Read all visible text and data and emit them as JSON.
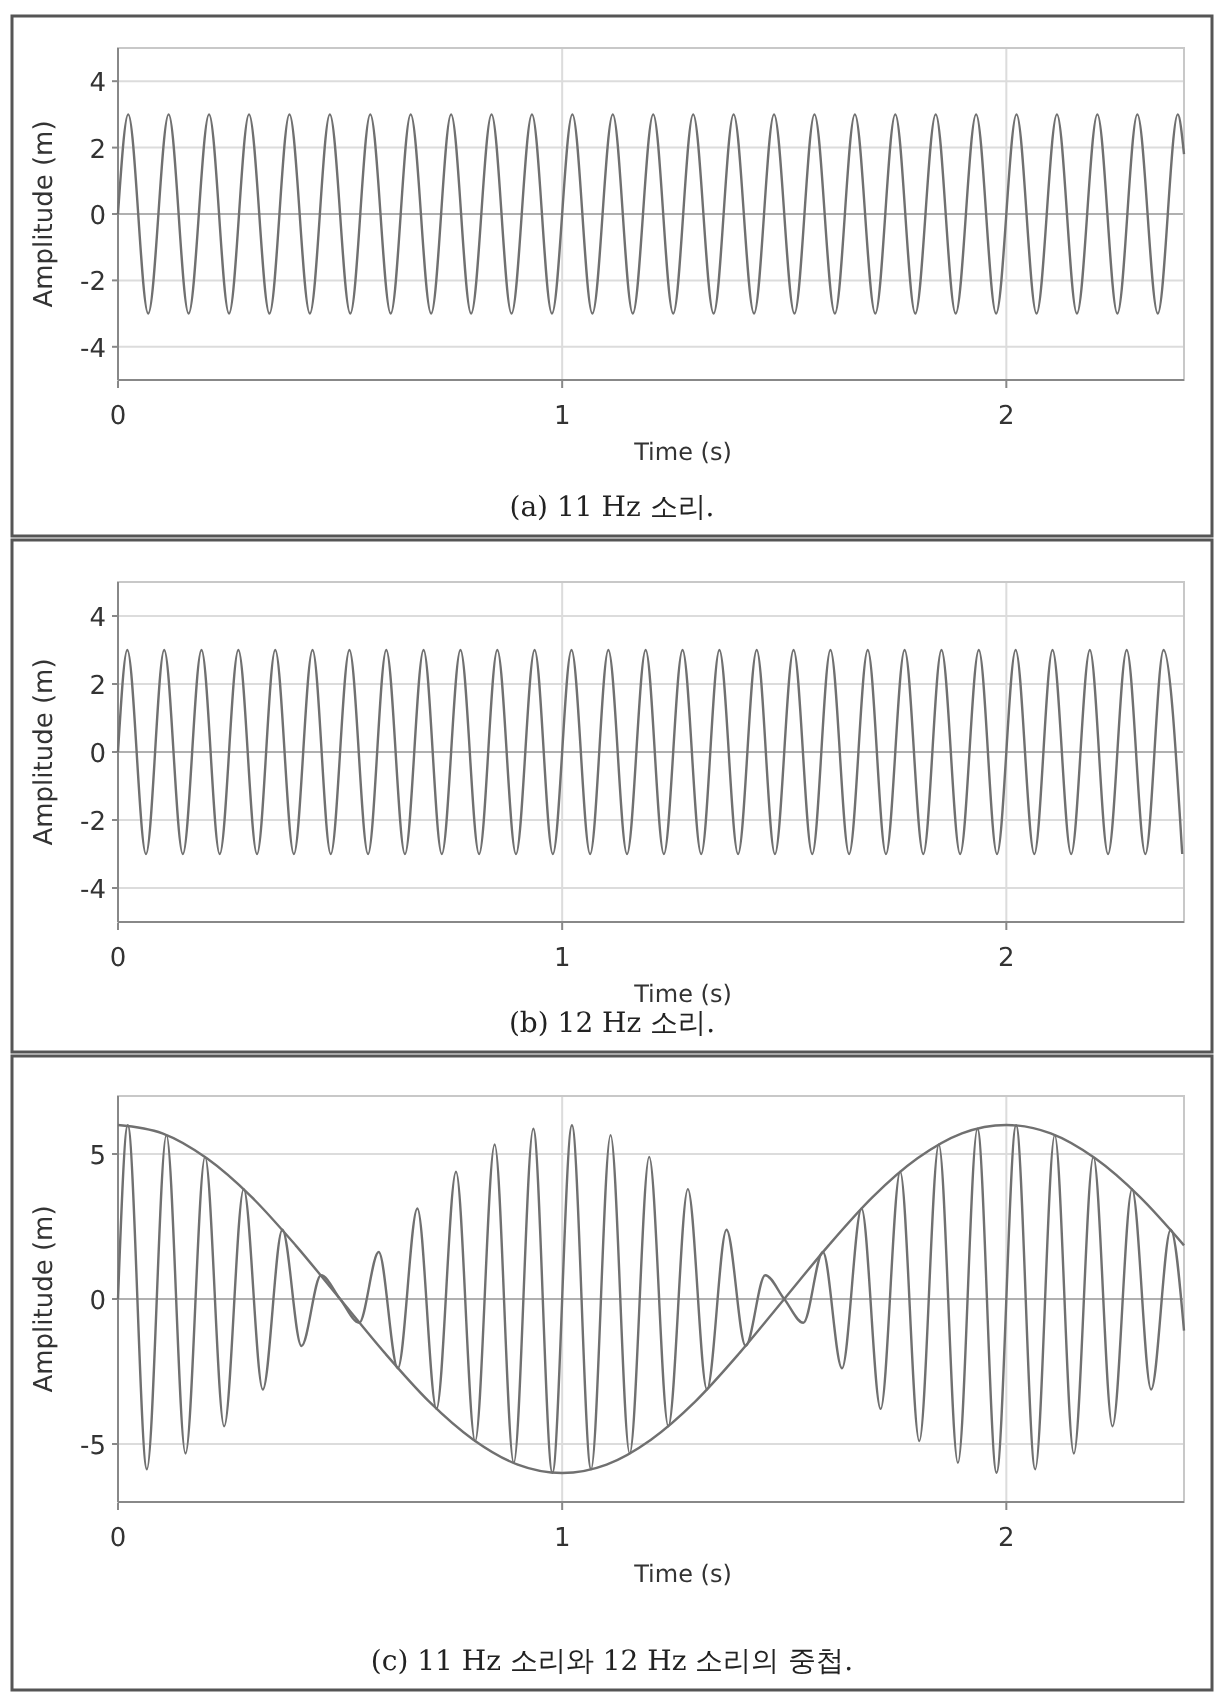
{
  "chart_data": [
    {
      "type": "line",
      "xlabel": "Time (s)",
      "ylabel": "Amplitude (m)",
      "annotations": [
        "(a) 11 Hz 소리."
      ],
      "xlim": [
        0,
        2.4
      ],
      "xticks": [
        0,
        1,
        2
      ],
      "ylim": [
        -5,
        5
      ],
      "yticks": [
        -4,
        -2,
        0,
        2,
        4
      ],
      "grid": true,
      "series": [
        {
          "color": "#707070",
          "x": [
            0,
            0.023,
            0.068,
            0.114,
            0.159,
            0.205,
            0.25,
            0.295,
            0.341,
            0.386,
            0.432,
            0.477,
            0.523,
            0.568,
            0.614,
            0.659,
            0.705,
            0.75,
            0.795,
            0.841,
            0.886,
            0.932,
            0.977,
            1.023,
            1.068,
            1.114,
            1.159,
            1.205,
            1.25,
            1.295,
            1.341,
            1.386,
            1.432,
            1.477,
            1.523,
            1.568,
            1.614,
            1.659,
            1.705,
            1.75,
            1.795,
            1.841,
            1.886,
            1.932,
            1.977,
            2.023,
            2.068,
            2.114,
            2.159,
            2.205,
            2.25,
            2.295,
            2.341,
            2.386,
            2.4
          ],
          "values": [
            0,
            3,
            -3,
            3,
            -3,
            3,
            -3,
            3,
            -3,
            3,
            -3,
            3,
            -3,
            3,
            -3,
            3,
            -3,
            3,
            -3,
            3,
            -3,
            3,
            -3,
            3,
            -3,
            3,
            -3,
            3,
            -3,
            3,
            -3,
            3,
            -3,
            3,
            -3,
            3,
            -3,
            3,
            -3,
            3,
            -3,
            3,
            -3,
            3,
            -3,
            3,
            -3,
            3,
            -3,
            3,
            -3,
            3,
            -3,
            3,
            1.8
          ]
        }
      ]
    },
    {
      "type": "line",
      "xlabel": "Time (s)",
      "ylabel": "Amplitude (m)",
      "annotations": [
        "(b) 12 Hz 소리."
      ],
      "xlim": [
        0,
        2.4
      ],
      "xticks": [
        0,
        1,
        2
      ],
      "ylim": [
        -5,
        5
      ],
      "yticks": [
        -4,
        -2,
        0,
        2,
        4
      ],
      "grid": true,
      "series": [
        {
          "color": "#707070",
          "x": [
            0,
            0.021,
            0.063,
            0.104,
            0.146,
            0.188,
            0.229,
            0.271,
            0.313,
            0.354,
            0.396,
            0.438,
            0.479,
            0.521,
            0.563,
            0.604,
            0.646,
            0.688,
            0.729,
            0.771,
            0.813,
            0.854,
            0.896,
            0.938,
            0.979,
            1.021,
            1.063,
            1.104,
            1.146,
            1.188,
            1.229,
            1.271,
            1.313,
            1.354,
            1.396,
            1.438,
            1.479,
            1.521,
            1.563,
            1.604,
            1.646,
            1.688,
            1.729,
            1.771,
            1.813,
            1.854,
            1.896,
            1.938,
            1.979,
            2.021,
            2.063,
            2.104,
            2.146,
            2.188,
            2.229,
            2.271,
            2.313,
            2.354,
            2.396
          ],
          "values": [
            0,
            3,
            -3,
            3,
            -3,
            3,
            -3,
            3,
            -3,
            3,
            -3,
            3,
            -3,
            3,
            -3,
            3,
            -3,
            3,
            -3,
            3,
            -3,
            3,
            -3,
            3,
            -3,
            3,
            -3,
            3,
            -3,
            3,
            -3,
            3,
            -3,
            3,
            -3,
            3,
            -3,
            3,
            -3,
            3,
            -3,
            3,
            -3,
            3,
            -3,
            3,
            -3,
            3,
            -3,
            3,
            -3,
            3,
            -3,
            3,
            -3,
            3,
            -3,
            3,
            -3
          ]
        }
      ]
    },
    {
      "type": "line",
      "xlabel": "Time (s)",
      "ylabel": "Amplitude (m)",
      "annotations": [
        "(c) 11 Hz 소리와 12 Hz 소리의 중첩."
      ],
      "xlim": [
        0,
        2.4
      ],
      "xticks": [
        0,
        1,
        2
      ],
      "ylim": [
        -7,
        7
      ],
      "yticks": [
        -5,
        0,
        5
      ],
      "grid": true,
      "series": [
        {
          "color": "#707070",
          "x": [
            0,
            0.022,
            0.065,
            0.109,
            0.152,
            0.196,
            0.239,
            0.283,
            0.326,
            0.37,
            0.413,
            0.457,
            0.5,
            0.543,
            0.587,
            0.63,
            0.674,
            0.717,
            0.761,
            0.804,
            0.848,
            0.891,
            0.935,
            0.978,
            1.022,
            1.065,
            1.109,
            1.152,
            1.196,
            1.239,
            1.283,
            1.326,
            1.37,
            1.413,
            1.457,
            1.5,
            1.543,
            1.587,
            1.63,
            1.674,
            1.717,
            1.761,
            1.804,
            1.848,
            1.891,
            1.935,
            1.978,
            2.022,
            2.065,
            2.109,
            2.152,
            2.196,
            2.239,
            2.283,
            2.326,
            2.37,
            2.4
          ],
          "values": [
            0,
            5.99,
            -5.87,
            5.65,
            -5.33,
            4.9,
            -4.39,
            3.79,
            -3.12,
            2.39,
            -1.62,
            0.82,
            0,
            -0.82,
            1.62,
            -2.39,
            3.12,
            -3.79,
            4.39,
            -4.9,
            5.33,
            -5.65,
            5.87,
            -5.99,
            5.99,
            -5.87,
            5.65,
            -5.33,
            4.9,
            -4.39,
            3.79,
            -3.12,
            2.39,
            -1.62,
            0.82,
            0,
            -0.82,
            1.62,
            -2.39,
            3.12,
            -3.79,
            4.39,
            -4.9,
            5.33,
            -5.65,
            5.87,
            -5.99,
            5.99,
            -5.87,
            5.65,
            -5.33,
            4.9,
            -4.39,
            3.79,
            -3.12,
            2.39,
            -1.09
          ]
        },
        {
          "color": "#707070",
          "x": [
            0,
            0.1,
            0.2,
            0.3,
            0.4,
            0.5,
            0.6,
            0.7,
            0.8,
            0.9,
            1,
            1.1,
            1.2,
            1.3,
            1.4,
            1.5,
            1.6,
            1.7,
            1.8,
            1.9,
            2,
            2.1,
            2.2,
            2.3,
            2.4
          ],
          "values": [
            6,
            5.71,
            4.85,
            3.53,
            1.85,
            0,
            -1.85,
            -3.53,
            -4.85,
            -5.71,
            -6,
            -5.71,
            -4.85,
            -3.53,
            -1.85,
            0,
            1.85,
            3.53,
            4.85,
            5.71,
            6,
            5.71,
            4.85,
            3.53,
            1.85
          ]
        }
      ]
    }
  ]
}
